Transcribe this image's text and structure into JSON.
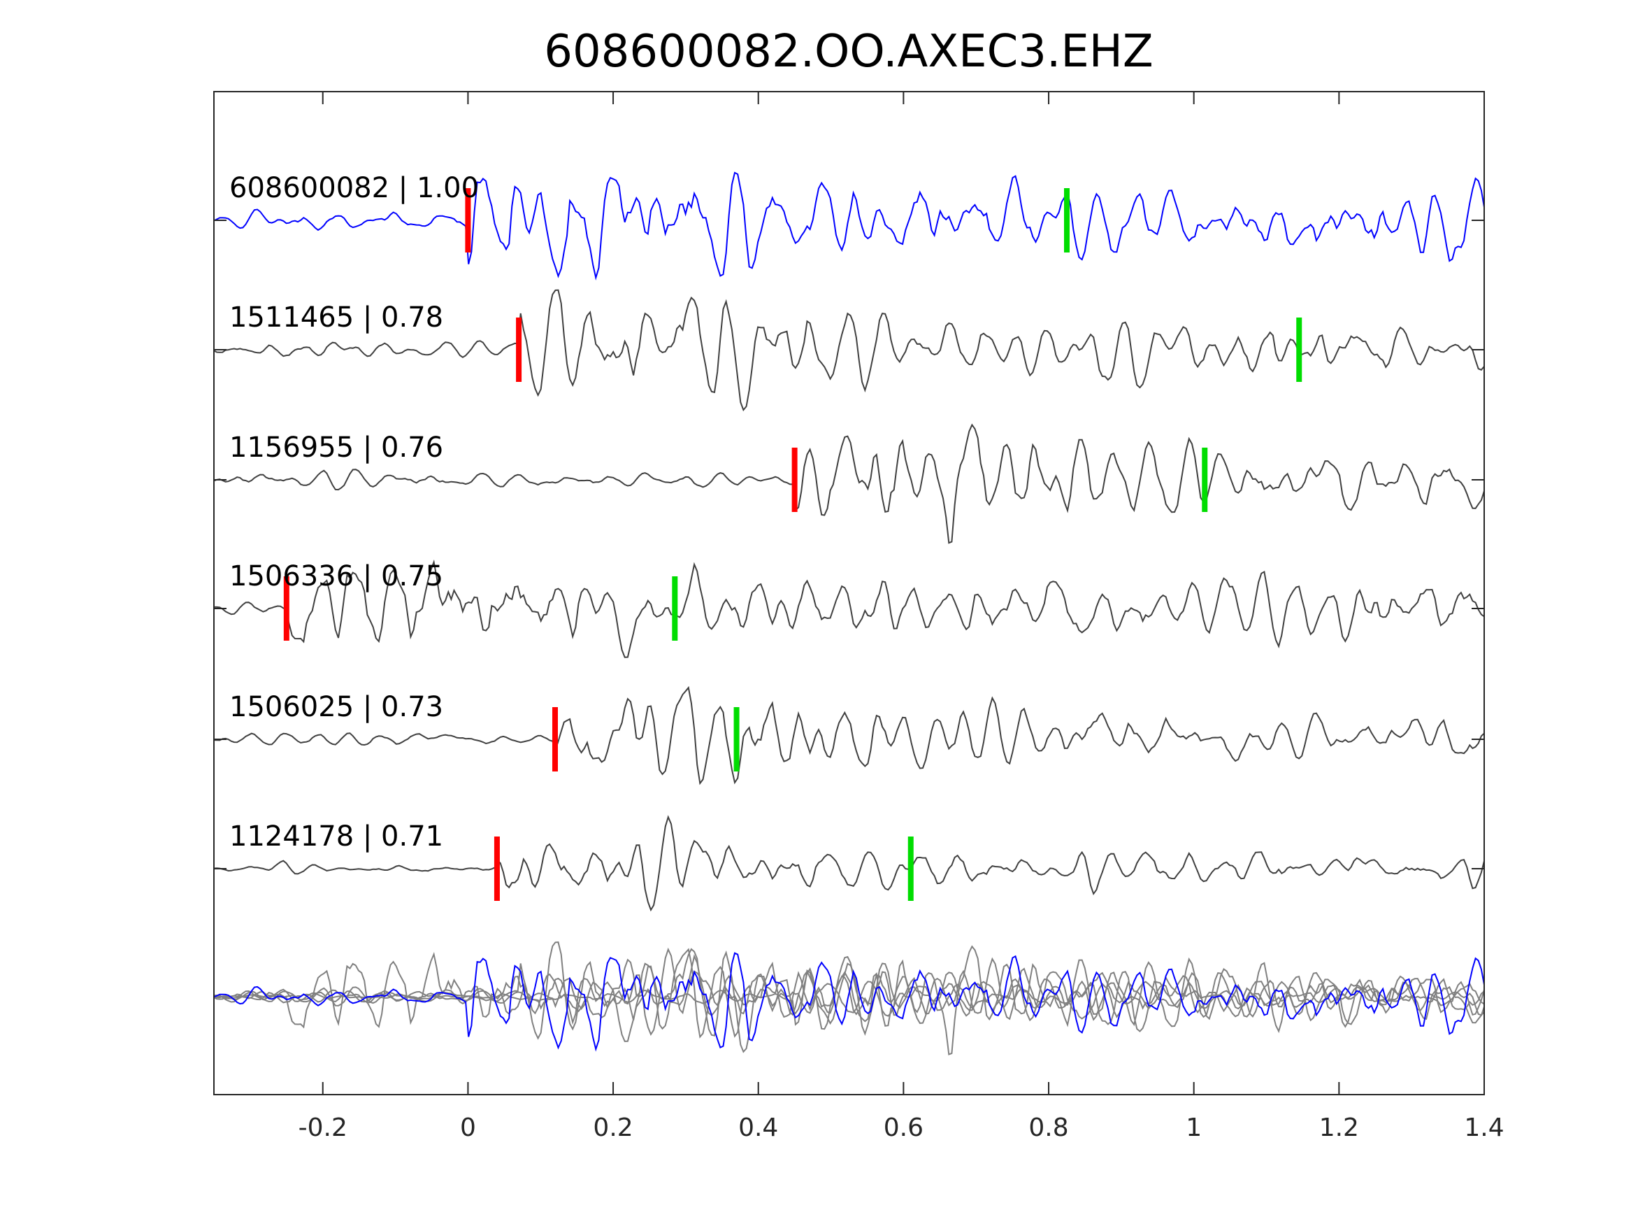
{
  "chart_data": {
    "type": "line",
    "title": "608600082.OO.AXEC3.EHZ",
    "xlabel": "",
    "ylabel": "",
    "xlim": [
      -0.35,
      1.4
    ],
    "xticks": [
      -0.2,
      0,
      0.2,
      0.4,
      0.6,
      0.8,
      1,
      1.2,
      1.4
    ],
    "xtick_labels": [
      "-0.2",
      "0",
      "0.2",
      "0.4",
      "0.6",
      "0.8",
      "1",
      "1.2",
      "1.4"
    ],
    "grid": false,
    "legend": "none",
    "colors": {
      "reference": "#0000ff",
      "match": "#404040",
      "overlay": "#808080",
      "p_pick": "#ff0000",
      "s_pick": "#00dd00"
    },
    "series": [
      {
        "name": "608600082 | 1.00",
        "id": "608600082",
        "cc": 1.0,
        "p_pick": 0.0,
        "s_pick": 0.825,
        "seed": 11,
        "amp": 1.0,
        "color": "#0000ff"
      },
      {
        "name": "1511465 | 0.78",
        "id": "1511465",
        "cc": 0.78,
        "p_pick": 0.07,
        "s_pick": 1.145,
        "seed": 23,
        "amp": 1.05,
        "color": "#404040"
      },
      {
        "name": "1156955 | 0.76",
        "id": "1156955",
        "cc": 0.76,
        "p_pick": 0.45,
        "s_pick": 1.015,
        "seed": 37,
        "amp": 1.1,
        "color": "#404040"
      },
      {
        "name": "1506336 | 0.75",
        "id": "1506336",
        "cc": 0.75,
        "p_pick": -0.25,
        "s_pick": 0.285,
        "seed": 51,
        "amp": 0.85,
        "color": "#404040"
      },
      {
        "name": "1506025 | 0.73",
        "id": "1506025",
        "cc": 0.73,
        "p_pick": 0.12,
        "s_pick": 0.37,
        "seed": 67,
        "amp": 0.9,
        "color": "#404040"
      },
      {
        "name": "1124178 | 0.71",
        "id": "1124178",
        "cc": 0.71,
        "p_pick": 0.04,
        "s_pick": 0.61,
        "seed": 83,
        "amp": 0.9,
        "color": "#404040"
      }
    ]
  }
}
